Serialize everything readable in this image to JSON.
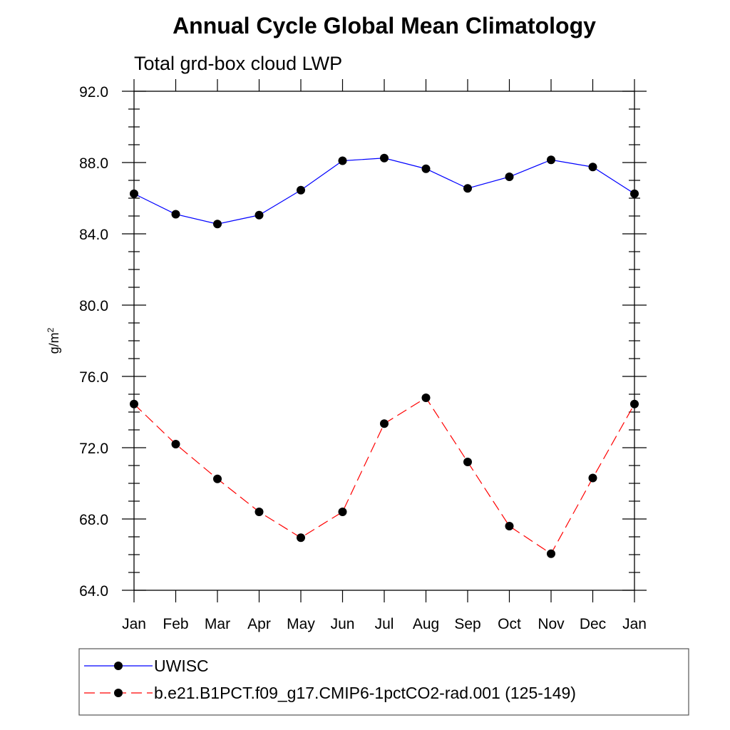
{
  "chart_data": {
    "type": "line",
    "title": "Annual Cycle Global Mean Climatology",
    "subtitle": "Total grd-box cloud LWP",
    "ylabel_base": "g/m",
    "ylabel_sup": "2",
    "ylim": [
      64.0,
      92.0
    ],
    "y_ticks": [
      "92.0",
      "88.0",
      "84.0",
      "80.0",
      "76.0",
      "72.0",
      "68.0",
      "64.0"
    ],
    "categories": [
      "Jan",
      "Feb",
      "Mar",
      "Apr",
      "May",
      "Jun",
      "Jul",
      "Aug",
      "Sep",
      "Oct",
      "Nov",
      "Dec",
      "Jan"
    ],
    "legend_position": "bottom",
    "series": [
      {
        "name": "UWISC",
        "color": "#0000ff",
        "dash": "solid",
        "values": [
          86.25,
          85.1,
          84.55,
          85.05,
          86.45,
          88.1,
          88.25,
          87.65,
          86.55,
          87.2,
          88.15,
          87.75,
          86.25
        ]
      },
      {
        "name": "b.e21.B1PCT.f09_g17.CMIP6-1pctCO2-rad.001 (125-149)",
        "color": "#ff0000",
        "dash": "dashed",
        "values": [
          74.45,
          72.2,
          70.25,
          68.4,
          66.95,
          68.4,
          73.35,
          74.8,
          71.2,
          67.6,
          66.05,
          70.3,
          74.45
        ]
      }
    ]
  }
}
